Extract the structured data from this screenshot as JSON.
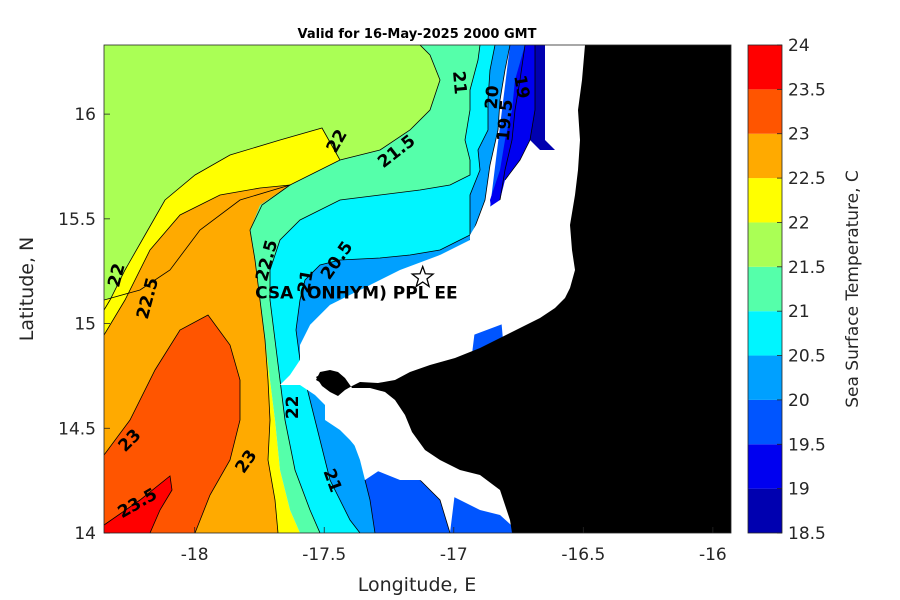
{
  "chart_data": {
    "type": "heatmap",
    "subtype": "filled-contour-map",
    "title": "Valid for 16-May-2025 2000 GMT",
    "xlabel": "Longitude, E",
    "ylabel": "Latitude, N",
    "colorbar_label": "Sea Surface Temperature, C",
    "xlim": [
      -18.35,
      -15.93
    ],
    "ylim": [
      14.0,
      16.33
    ],
    "xticks": [
      {
        "value": -18,
        "label": "-18"
      },
      {
        "value": -17.5,
        "label": "-17.5"
      },
      {
        "value": -17,
        "label": "-17"
      },
      {
        "value": -16.5,
        "label": "-16.5"
      },
      {
        "value": -16,
        "label": "-16"
      }
    ],
    "yticks": [
      {
        "value": 14,
        "label": "14"
      },
      {
        "value": 14.5,
        "label": "14.5"
      },
      {
        "value": 15,
        "label": "15"
      },
      {
        "value": 15.5,
        "label": "15.5"
      },
      {
        "value": 16,
        "label": "16"
      }
    ],
    "colorbar": {
      "range": [
        18.5,
        24
      ],
      "ticks": [
        "24",
        "23.5",
        "23",
        "22.5",
        "22",
        "21.5",
        "21",
        "20.5",
        "20",
        "19.5",
        "19",
        "18.5"
      ],
      "bands": [
        {
          "from": 18.5,
          "to": 19.0,
          "color": "#0000B0"
        },
        {
          "from": 19.0,
          "to": 19.5,
          "color": "#0000F0"
        },
        {
          "from": 19.5,
          "to": 20.0,
          "color": "#0055FF"
        },
        {
          "from": 20.0,
          "to": 20.5,
          "color": "#00A0FF"
        },
        {
          "from": 20.5,
          "to": 21.0,
          "color": "#00F5FF"
        },
        {
          "from": 21.0,
          "to": 21.5,
          "color": "#55FFAA"
        },
        {
          "from": 21.5,
          "to": 22.0,
          "color": "#AAFF55"
        },
        {
          "from": 22.0,
          "to": 22.5,
          "color": "#FFFF00"
        },
        {
          "from": 22.5,
          "to": 23.0,
          "color": "#FFAA00"
        },
        {
          "from": 23.0,
          "to": 23.5,
          "color": "#FF5500"
        },
        {
          "from": 23.5,
          "to": 24.0,
          "color": "#FF0000"
        }
      ]
    },
    "station": {
      "name": "CSA (ONHYM) PPL EE",
      "lon": -17.12,
      "lat": 15.22,
      "marker": "star"
    },
    "contour_labels": [
      {
        "text": "22",
        "lon": -18.3,
        "lat": 15.23,
        "rotate": -75
      },
      {
        "text": "22.5",
        "lon": -18.18,
        "lat": 15.12,
        "rotate": -75
      },
      {
        "text": "23",
        "lon": -18.25,
        "lat": 14.44,
        "rotate": -45
      },
      {
        "text": "23.5",
        "lon": -18.22,
        "lat": 14.14,
        "rotate": -30
      },
      {
        "text": "23",
        "lon": -17.8,
        "lat": 14.34,
        "rotate": -55
      },
      {
        "text": "22.5",
        "lon": -17.72,
        "lat": 15.3,
        "rotate": -75
      },
      {
        "text": "22",
        "lon": -17.62,
        "lat": 14.6,
        "rotate": -90
      },
      {
        "text": "21",
        "lon": -17.57,
        "lat": 15.2,
        "rotate": -80
      },
      {
        "text": "20.5",
        "lon": -17.45,
        "lat": 15.3,
        "rotate": -55
      },
      {
        "text": "21",
        "lon": -17.47,
        "lat": 14.25,
        "rotate": 70
      },
      {
        "text": "22",
        "lon": -17.45,
        "lat": 15.87,
        "rotate": -60
      },
      {
        "text": "21.5",
        "lon": -17.22,
        "lat": 15.82,
        "rotate": -38
      },
      {
        "text": "21",
        "lon": -16.98,
        "lat": 16.15,
        "rotate": 85
      },
      {
        "text": "20",
        "lon": -16.85,
        "lat": 16.08,
        "rotate": -85
      },
      {
        "text": "19.5",
        "lon": -16.8,
        "lat": 15.97,
        "rotate": -85
      },
      {
        "text": "19",
        "lon": -16.74,
        "lat": 16.13,
        "rotate": 80
      }
    ],
    "colors": {
      "land": "#000000",
      "mask": "#ffffff",
      "contour_line": "#000000"
    }
  }
}
